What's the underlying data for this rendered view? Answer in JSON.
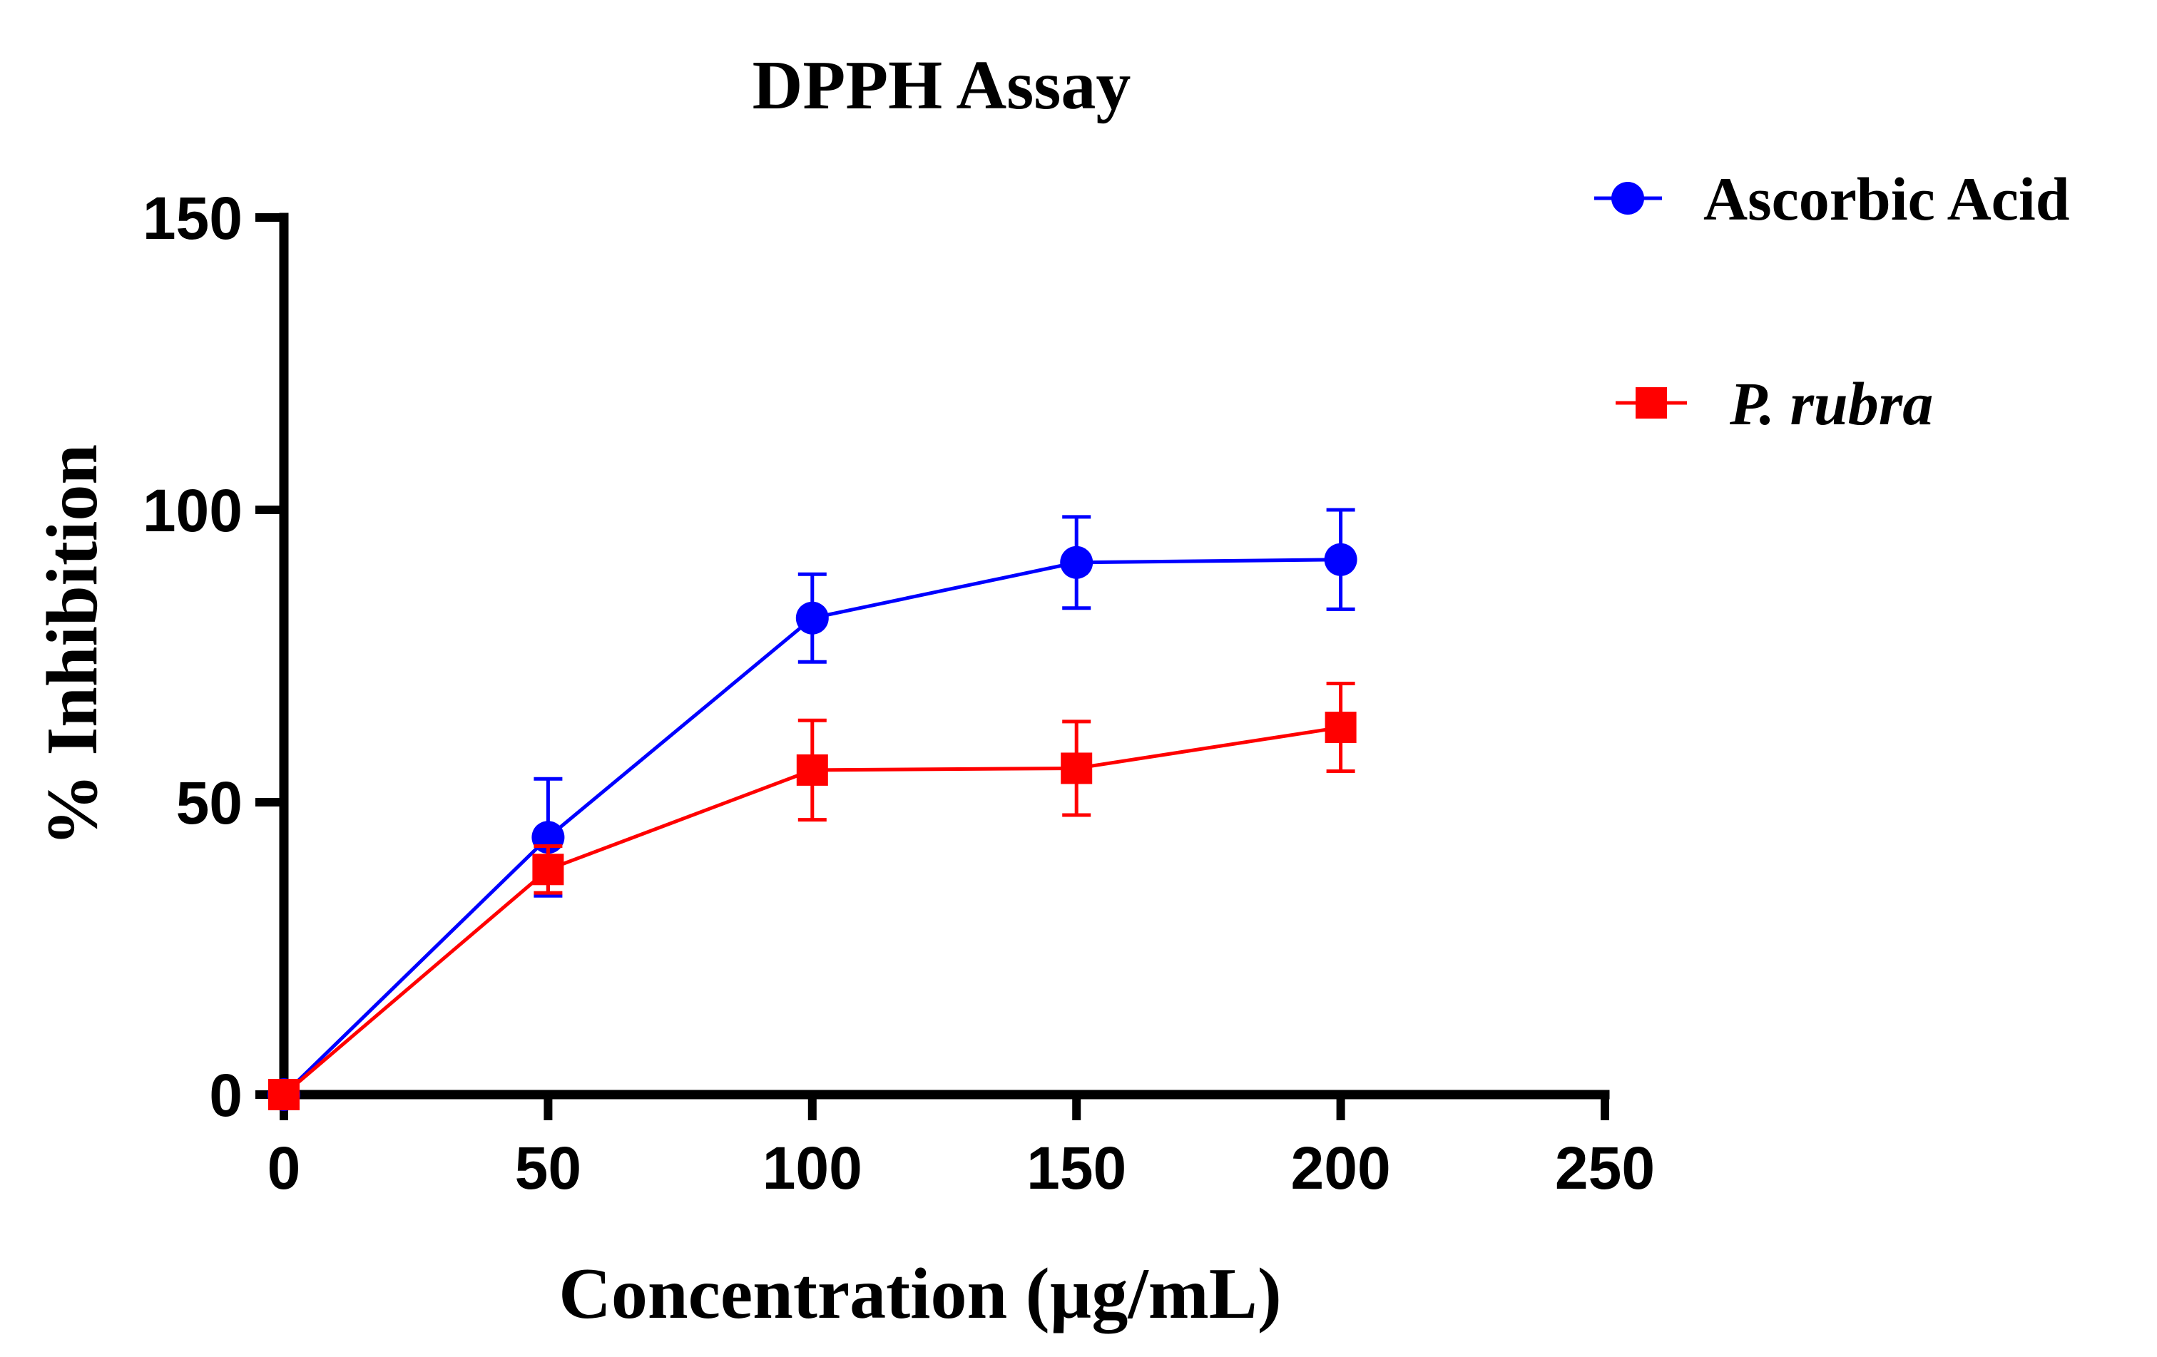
{
  "chart_data": {
    "type": "line",
    "title": "DPPH Assay",
    "xlabel": "Concentration (µg/mL)",
    "ylabel": "% Inhibition",
    "xlim": [
      0,
      250
    ],
    "ylim": [
      0,
      150
    ],
    "x_ticks": [
      "0",
      "50",
      "100",
      "150",
      "200",
      "250"
    ],
    "y_ticks": [
      "0",
      "50",
      "100",
      "150"
    ],
    "grid": false,
    "legend_position": "top-right",
    "series": [
      {
        "name": "Ascorbic Acid",
        "color": "#0000ff",
        "marker": "circle",
        "x": [
          0,
          50,
          100,
          150,
          200
        ],
        "y": [
          0,
          44,
          81.5,
          91,
          91.5
        ],
        "error": [
          0,
          10,
          7.5,
          7.8,
          8.5
        ]
      },
      {
        "name": "P. rubra",
        "color": "#ff0000",
        "marker": "square",
        "italic": true,
        "x": [
          0,
          50,
          100,
          150,
          200
        ],
        "y": [
          0,
          38.5,
          55.5,
          55.8,
          62.8
        ],
        "error": [
          0,
          4,
          8.5,
          8,
          7.5
        ]
      }
    ]
  }
}
